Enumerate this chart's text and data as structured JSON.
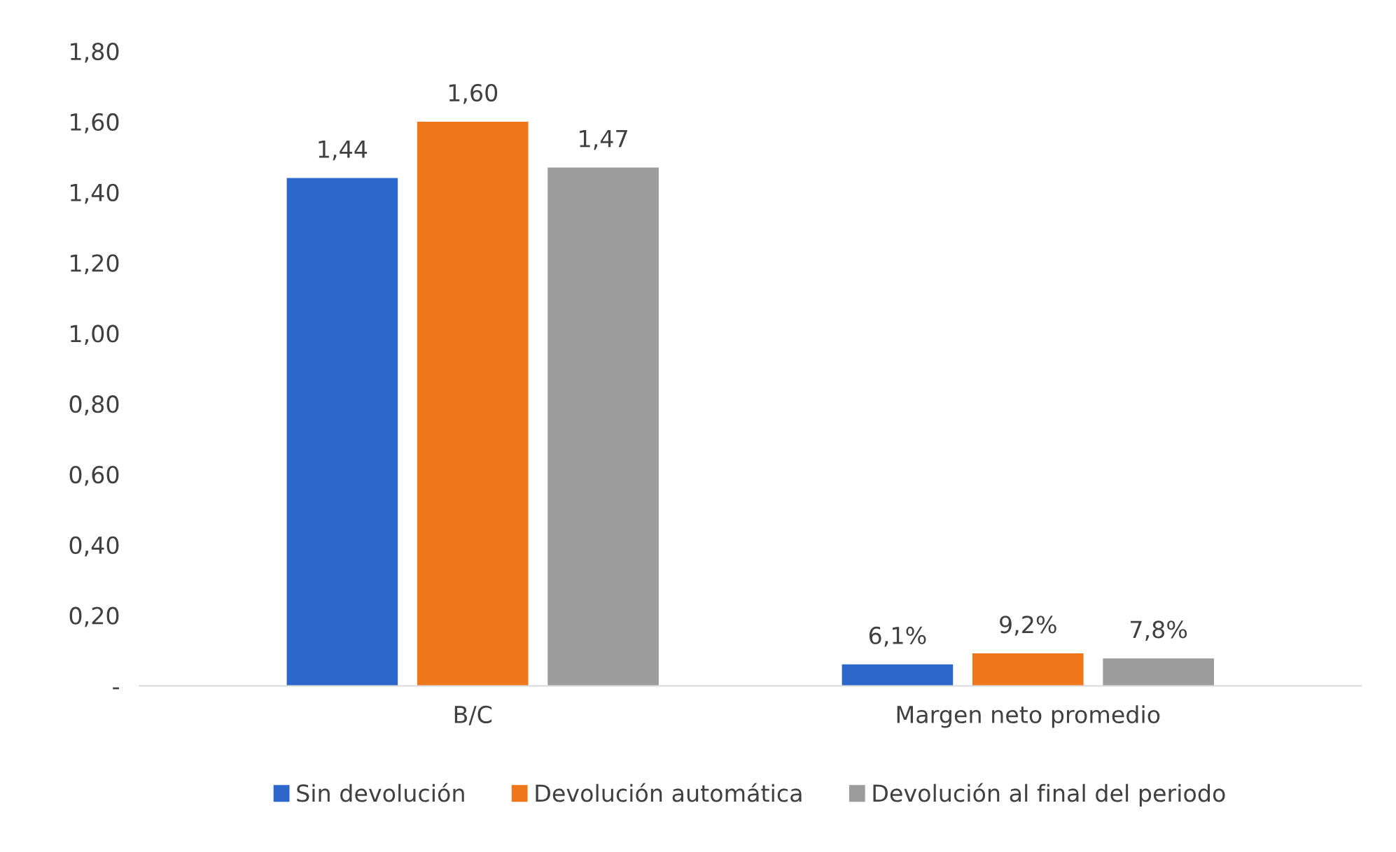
{
  "chart_data": {
    "type": "bar",
    "categories": [
      "B/C",
      "Margen neto promedio"
    ],
    "series": [
      {
        "name": "Sin devolución",
        "color": "#2d67cc",
        "values": [
          1.44,
          0.061
        ],
        "value_labels": [
          "1,44",
          "6,1%"
        ]
      },
      {
        "name": "Devolución automática",
        "color": "#f0761a",
        "values": [
          1.6,
          0.092
        ],
        "value_labels": [
          "1,60",
          "9,2%"
        ]
      },
      {
        "name": "Devolución al final del periodo",
        "color": "#9c9c9c",
        "values": [
          1.47,
          0.078
        ],
        "value_labels": [
          "1,47",
          "7,8%"
        ]
      }
    ],
    "ylim": [
      0,
      1.8
    ],
    "yticks": [
      {
        "value": 0,
        "label": "-"
      },
      {
        "value": 0.2,
        "label": "0,20"
      },
      {
        "value": 0.4,
        "label": "0,40"
      },
      {
        "value": 0.6,
        "label": "0,60"
      },
      {
        "value": 0.8,
        "label": "0,80"
      },
      {
        "value": 1.0,
        "label": "1,00"
      },
      {
        "value": 1.2,
        "label": "1,20"
      },
      {
        "value": 1.4,
        "label": "1,40"
      },
      {
        "value": 1.6,
        "label": "1,60"
      },
      {
        "value": 1.8,
        "label": "1,80"
      }
    ],
    "grid": false,
    "legend": "bottom"
  }
}
